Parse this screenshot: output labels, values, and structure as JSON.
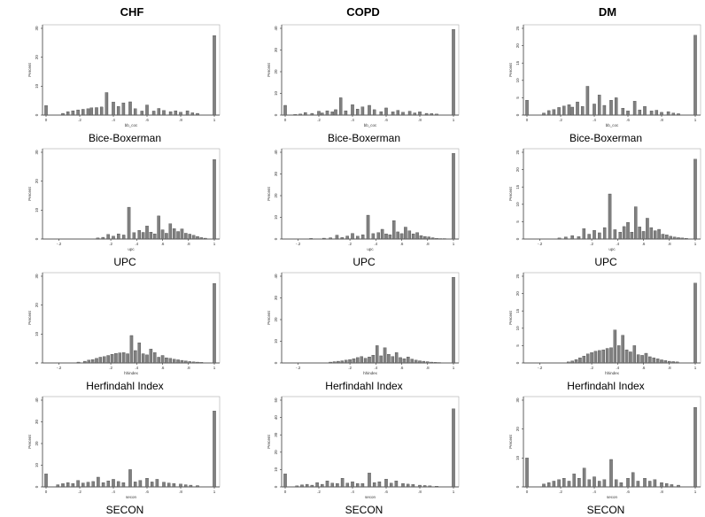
{
  "columns": [
    "CHF",
    "COPD",
    "DM"
  ],
  "row_labels": [
    "Bice-Boxerman",
    "UPC",
    "Herfindahl Index",
    "SECON"
  ],
  "ylabel": "Percent",
  "xlabels": [
    "bb_coc",
    "upc",
    "hhindex",
    "secon"
  ],
  "colors": {
    "bar": "#808080",
    "bar_stroke": "#333333",
    "frame": "#aaaaaa",
    "axis": "#333333"
  },
  "chart_data": [
    {
      "type": "bar",
      "panel": "CHF-bb_coc",
      "xlabel": "bb_coc",
      "ylabel": "Percent",
      "xlim": [
        0,
        1
      ],
      "ylim": [
        0,
        30
      ],
      "xticks": [
        0,
        0.2,
        0.4,
        0.6,
        0.8,
        1
      ],
      "xtick_labels": [
        "0",
        ".2",
        ".4",
        ".6",
        ".8",
        "1"
      ],
      "yticks": [
        0,
        10,
        20,
        30
      ],
      "x": [
        0.0,
        0.1,
        0.13,
        0.16,
        0.19,
        0.22,
        0.25,
        0.27,
        0.3,
        0.33,
        0.36,
        0.4,
        0.43,
        0.46,
        0.5,
        0.53,
        0.57,
        0.6,
        0.64,
        0.67,
        0.7,
        0.74,
        0.77,
        0.8,
        0.84,
        0.87,
        0.9,
        1.0
      ],
      "values": [
        3.3,
        0.6,
        1.2,
        1.5,
        1.8,
        2.0,
        2.2,
        2.5,
        2.6,
        2.8,
        7.8,
        4.5,
        3.0,
        4.2,
        4.6,
        2.2,
        1.4,
        3.5,
        1.4,
        2.3,
        1.6,
        1.2,
        1.5,
        1.0,
        1.5,
        0.8,
        0.6,
        27.5
      ]
    },
    {
      "type": "bar",
      "panel": "COPD-bb_coc",
      "xlabel": "bb_coc",
      "ylabel": "Percent",
      "xlim": [
        0,
        1
      ],
      "ylim": [
        0,
        40
      ],
      "xticks": [
        0,
        0.2,
        0.4,
        0.6,
        0.8,
        1
      ],
      "xtick_labels": [
        "0",
        ".2",
        ".4",
        ".6",
        ".8",
        "1"
      ],
      "yticks": [
        0,
        10,
        20,
        30,
        40
      ],
      "x": [
        0.0,
        0.06,
        0.09,
        0.12,
        0.16,
        0.2,
        0.22,
        0.25,
        0.28,
        0.3,
        0.33,
        0.36,
        0.4,
        0.43,
        0.46,
        0.5,
        0.53,
        0.57,
        0.6,
        0.64,
        0.67,
        0.7,
        0.74,
        0.77,
        0.8,
        0.84,
        0.87,
        0.9,
        1.0
      ],
      "values": [
        4.5,
        0.3,
        0.5,
        1.2,
        0.8,
        1.8,
        1.0,
        2.0,
        1.5,
        2.5,
        8.0,
        2.0,
        4.8,
        2.8,
        3.8,
        4.5,
        2.5,
        1.6,
        3.3,
        1.5,
        2.2,
        1.3,
        1.8,
        1.0,
        1.5,
        0.8,
        0.7,
        0.5,
        39.5
      ]
    },
    {
      "type": "bar",
      "panel": "DM-bb_coc",
      "xlabel": "bb_coc",
      "ylabel": "Percent",
      "xlim": [
        0,
        1
      ],
      "ylim": [
        0,
        25
      ],
      "xticks": [
        0,
        0.2,
        0.4,
        0.6,
        0.8,
        1
      ],
      "xtick_labels": [
        "0",
        ".2",
        ".4",
        ".6",
        ".8",
        "1"
      ],
      "yticks": [
        0,
        5,
        10,
        15,
        20,
        25
      ],
      "x": [
        0.0,
        0.1,
        0.13,
        0.16,
        0.19,
        0.22,
        0.25,
        0.27,
        0.3,
        0.33,
        0.36,
        0.4,
        0.43,
        0.46,
        0.5,
        0.53,
        0.57,
        0.6,
        0.64,
        0.67,
        0.7,
        0.74,
        0.77,
        0.8,
        0.84,
        0.87,
        0.9,
        1.0
      ],
      "values": [
        4.3,
        0.6,
        1.3,
        1.6,
        2.2,
        2.6,
        3.0,
        2.3,
        3.8,
        2.5,
        8.3,
        3.2,
        5.8,
        2.8,
        4.3,
        5.0,
        2.0,
        1.2,
        4.0,
        1.5,
        2.5,
        1.2,
        1.4,
        0.8,
        1.0,
        0.6,
        0.4,
        23.0
      ]
    },
    {
      "type": "bar",
      "panel": "CHF-upc",
      "xlabel": "upc",
      "ylabel": "Percent",
      "xlim": [
        -0.3,
        1
      ],
      "ylim": [
        0,
        30
      ],
      "xticks": [
        -0.2,
        0.2,
        0.4,
        0.6,
        0.8,
        1
      ],
      "xtick_labels": [
        "-.2",
        ".2",
        ".4",
        ".6",
        ".8",
        "1"
      ],
      "yticks": [
        0,
        10,
        20,
        30
      ],
      "x": [
        0.1,
        0.14,
        0.18,
        0.22,
        0.26,
        0.3,
        0.34,
        0.38,
        0.42,
        0.45,
        0.48,
        0.51,
        0.54,
        0.57,
        0.6,
        0.63,
        0.66,
        0.69,
        0.72,
        0.75,
        0.78,
        0.81,
        0.84,
        0.87,
        0.9,
        0.93,
        1.0
      ],
      "values": [
        0.4,
        0.6,
        1.6,
        1.0,
        1.8,
        1.4,
        11.0,
        2.2,
        3.0,
        2.3,
        4.5,
        2.4,
        1.8,
        8.0,
        3.2,
        2.0,
        5.3,
        3.6,
        2.6,
        3.5,
        2.0,
        1.7,
        1.3,
        0.9,
        0.5,
        0.3,
        27.5
      ]
    },
    {
      "type": "bar",
      "panel": "COPD-upc",
      "xlabel": "upc",
      "ylabel": "Percent",
      "xlim": [
        -0.3,
        1
      ],
      "ylim": [
        0,
        40
      ],
      "xticks": [
        -0.2,
        0.2,
        0.4,
        0.6,
        0.8,
        1
      ],
      "xtick_labels": [
        "-.2",
        ".2",
        ".4",
        ".6",
        ".8",
        "1"
      ],
      "yticks": [
        0,
        10,
        20,
        30,
        40
      ],
      "x": [
        -0.1,
        0.0,
        0.05,
        0.1,
        0.14,
        0.18,
        0.22,
        0.26,
        0.3,
        0.34,
        0.38,
        0.42,
        0.45,
        0.48,
        0.51,
        0.54,
        0.57,
        0.6,
        0.63,
        0.66,
        0.69,
        0.72,
        0.75,
        0.78,
        0.81,
        0.84,
        0.87,
        0.9,
        0.93,
        1.0
      ],
      "values": [
        0.3,
        0.4,
        0.6,
        1.8,
        0.7,
        1.4,
        2.6,
        1.3,
        2.0,
        11.0,
        2.5,
        3.0,
        4.5,
        2.4,
        2.0,
        8.5,
        3.3,
        2.5,
        5.5,
        3.8,
        2.4,
        3.0,
        1.6,
        1.2,
        1.0,
        0.6,
        0.3,
        0.2,
        0.2,
        39.5
      ]
    },
    {
      "type": "bar",
      "panel": "DM-upc",
      "xlabel": "upc",
      "ylabel": "Percent",
      "xlim": [
        -0.3,
        1
      ],
      "ylim": [
        0,
        25
      ],
      "xticks": [
        -0.2,
        0.2,
        0.4,
        0.6,
        0.8,
        1
      ],
      "xtick_labels": [
        "-.2",
        ".2",
        ".4",
        ".6",
        ".8",
        "1"
      ],
      "yticks": [
        0,
        5,
        10,
        15,
        20,
        25
      ],
      "x": [
        -0.05,
        0.0,
        0.05,
        0.1,
        0.14,
        0.18,
        0.22,
        0.26,
        0.3,
        0.34,
        0.38,
        0.42,
        0.45,
        0.48,
        0.51,
        0.54,
        0.57,
        0.6,
        0.63,
        0.66,
        0.69,
        0.72,
        0.75,
        0.78,
        0.81,
        0.84,
        0.87,
        0.9,
        0.93,
        1.0
      ],
      "values": [
        0.3,
        0.6,
        1.0,
        0.7,
        3.0,
        1.4,
        2.5,
        1.8,
        3.3,
        13.0,
        2.7,
        2.0,
        3.6,
        4.8,
        2.0,
        9.3,
        3.5,
        2.2,
        6.0,
        3.3,
        2.4,
        2.8,
        1.4,
        1.2,
        0.8,
        0.6,
        0.4,
        0.3,
        0.2,
        23.0
      ]
    },
    {
      "type": "bar",
      "panel": "CHF-hhindex",
      "xlabel": "hhindex",
      "ylabel": "Percent",
      "xlim": [
        -0.3,
        1
      ],
      "ylim": [
        0,
        30
      ],
      "xticks": [
        -0.2,
        0.2,
        0.4,
        0.6,
        0.8,
        1
      ],
      "xtick_labels": [
        "-.2",
        ".2",
        ".4",
        ".6",
        ".8",
        "1"
      ],
      "yticks": [
        0,
        10,
        20,
        30
      ],
      "x": [
        -0.05,
        0.0,
        0.03,
        0.06,
        0.09,
        0.12,
        0.15,
        0.18,
        0.21,
        0.24,
        0.27,
        0.3,
        0.33,
        0.36,
        0.39,
        0.42,
        0.45,
        0.48,
        0.51,
        0.54,
        0.57,
        0.6,
        0.63,
        0.66,
        0.69,
        0.72,
        0.75,
        0.78,
        0.81,
        0.84,
        0.87,
        0.9,
        1.0
      ],
      "values": [
        0.3,
        0.6,
        1.0,
        1.2,
        1.6,
        2.0,
        2.2,
        2.6,
        3.0,
        3.3,
        3.5,
        3.6,
        3.2,
        9.5,
        4.3,
        7.0,
        3.2,
        2.8,
        4.8,
        3.6,
        2.0,
        2.6,
        1.8,
        1.6,
        1.3,
        1.1,
        0.9,
        0.7,
        0.5,
        0.4,
        0.3,
        0.2,
        27.5
      ]
    },
    {
      "type": "bar",
      "panel": "COPD-hhindex",
      "xlabel": "hhindex",
      "ylabel": "Percent",
      "xlim": [
        -0.3,
        1
      ],
      "ylim": [
        0,
        40
      ],
      "xticks": [
        -0.2,
        0.2,
        0.4,
        0.6,
        0.8,
        1
      ],
      "xtick_labels": [
        "-.2",
        ".2",
        ".4",
        ".6",
        ".8",
        "1"
      ],
      "yticks": [
        0,
        10,
        20,
        30,
        40
      ],
      "x": [
        0.05,
        0.08,
        0.11,
        0.14,
        0.17,
        0.2,
        0.23,
        0.26,
        0.29,
        0.32,
        0.35,
        0.38,
        0.41,
        0.44,
        0.47,
        0.5,
        0.53,
        0.56,
        0.59,
        0.62,
        0.65,
        0.68,
        0.71,
        0.74,
        0.77,
        0.8,
        0.83,
        0.86,
        0.89,
        1.0
      ],
      "values": [
        0.4,
        0.6,
        0.8,
        1.0,
        1.3,
        1.6,
        2.0,
        2.5,
        3.0,
        2.2,
        2.8,
        3.6,
        8.0,
        3.3,
        7.0,
        4.0,
        3.0,
        4.8,
        2.5,
        2.0,
        2.8,
        1.8,
        1.3,
        1.0,
        0.8,
        0.6,
        0.4,
        0.3,
        0.2,
        39.5
      ]
    },
    {
      "type": "bar",
      "panel": "DM-hhindex",
      "xlabel": "hhindex",
      "ylabel": "Percent",
      "xlim": [
        -0.3,
        1
      ],
      "ylim": [
        0,
        25
      ],
      "xticks": [
        -0.2,
        0.2,
        0.4,
        0.6,
        0.8,
        1
      ],
      "xtick_labels": [
        "-.2",
        ".2",
        ".4",
        ".6",
        ".8",
        "1"
      ],
      "yticks": [
        0,
        5,
        10,
        15,
        20,
        25
      ],
      "x": [
        0.02,
        0.05,
        0.08,
        0.11,
        0.14,
        0.17,
        0.2,
        0.23,
        0.26,
        0.29,
        0.32,
        0.35,
        0.38,
        0.41,
        0.44,
        0.47,
        0.5,
        0.53,
        0.56,
        0.59,
        0.62,
        0.65,
        0.68,
        0.71,
        0.74,
        0.77,
        0.8,
        0.83,
        0.86,
        1.0
      ],
      "values": [
        0.3,
        0.6,
        1.0,
        1.5,
        2.0,
        2.6,
        3.0,
        3.4,
        3.6,
        3.8,
        4.2,
        4.4,
        9.5,
        5.0,
        8.0,
        3.8,
        3.2,
        5.0,
        2.4,
        2.2,
        2.8,
        1.8,
        1.5,
        1.2,
        0.9,
        0.7,
        0.5,
        0.4,
        0.3,
        23.0
      ]
    },
    {
      "type": "bar",
      "panel": "CHF-secon",
      "xlabel": "secon",
      "ylabel": "Percent",
      "xlim": [
        0,
        1
      ],
      "ylim": [
        0,
        40
      ],
      "xticks": [
        0,
        0.2,
        0.4,
        0.6,
        0.8,
        1
      ],
      "xtick_labels": [
        "0",
        ".2",
        ".4",
        ".6",
        ".8",
        "1"
      ],
      "yticks": [
        0,
        10,
        20,
        30,
        40
      ],
      "x": [
        0.0,
        0.07,
        0.1,
        0.13,
        0.16,
        0.19,
        0.22,
        0.25,
        0.28,
        0.31,
        0.34,
        0.37,
        0.4,
        0.43,
        0.46,
        0.5,
        0.53,
        0.56,
        0.6,
        0.63,
        0.66,
        0.7,
        0.73,
        0.76,
        0.8,
        0.83,
        0.86,
        0.9,
        1.0
      ],
      "values": [
        6.0,
        1.0,
        1.5,
        2.0,
        1.6,
        3.0,
        1.8,
        2.2,
        2.5,
        4.5,
        2.0,
        2.8,
        3.5,
        2.5,
        2.0,
        8.0,
        2.3,
        3.0,
        4.0,
        2.3,
        3.5,
        2.2,
        1.8,
        1.6,
        1.3,
        1.0,
        0.8,
        0.6,
        35.0
      ]
    },
    {
      "type": "bar",
      "panel": "COPD-secon",
      "xlabel": "secon",
      "ylabel": "Percent",
      "xlim": [
        0,
        1
      ],
      "ylim": [
        0,
        50
      ],
      "xticks": [
        0,
        0.2,
        0.4,
        0.6,
        0.8,
        1
      ],
      "xtick_labels": [
        "0",
        ".2",
        ".4",
        ".6",
        ".8",
        "1"
      ],
      "yticks": [
        0,
        10,
        20,
        30,
        40,
        50
      ],
      "x": [
        0.0,
        0.07,
        0.1,
        0.13,
        0.16,
        0.19,
        0.22,
        0.25,
        0.28,
        0.31,
        0.34,
        0.37,
        0.4,
        0.43,
        0.46,
        0.5,
        0.53,
        0.56,
        0.6,
        0.63,
        0.66,
        0.7,
        0.73,
        0.76,
        0.8,
        0.83,
        0.86,
        0.9,
        1.0
      ],
      "values": [
        7.5,
        0.6,
        1.2,
        1.5,
        1.0,
        2.5,
        1.5,
        3.5,
        2.2,
        2.0,
        5.0,
        2.2,
        3.0,
        2.0,
        2.0,
        8.0,
        2.5,
        3.0,
        4.5,
        2.2,
        3.5,
        2.0,
        1.6,
        1.4,
        1.0,
        0.8,
        0.6,
        0.4,
        45.0
      ]
    },
    {
      "type": "bar",
      "panel": "DM-secon",
      "xlabel": "secon",
      "ylabel": "Percent",
      "xlim": [
        0,
        1
      ],
      "ylim": [
        0,
        30
      ],
      "xticks": [
        0,
        0.2,
        0.4,
        0.6,
        0.8,
        1
      ],
      "xtick_labels": [
        "0",
        ".2",
        ".4",
        ".6",
        ".8",
        "1"
      ],
      "yticks": [
        0,
        10,
        20,
        30
      ],
      "x": [
        0.0,
        0.1,
        0.13,
        0.16,
        0.19,
        0.22,
        0.25,
        0.28,
        0.31,
        0.34,
        0.37,
        0.4,
        0.43,
        0.46,
        0.5,
        0.53,
        0.56,
        0.6,
        0.63,
        0.66,
        0.7,
        0.73,
        0.76,
        0.8,
        0.83,
        0.86,
        0.9,
        1.0
      ],
      "values": [
        10.0,
        1.0,
        1.5,
        2.0,
        2.5,
        3.0,
        2.0,
        4.5,
        3.0,
        6.5,
        2.5,
        3.5,
        2.0,
        2.5,
        9.5,
        2.5,
        1.5,
        3.0,
        5.0,
        2.0,
        3.0,
        2.0,
        2.5,
        1.5,
        1.2,
        0.8,
        0.6,
        27.5
      ]
    }
  ]
}
